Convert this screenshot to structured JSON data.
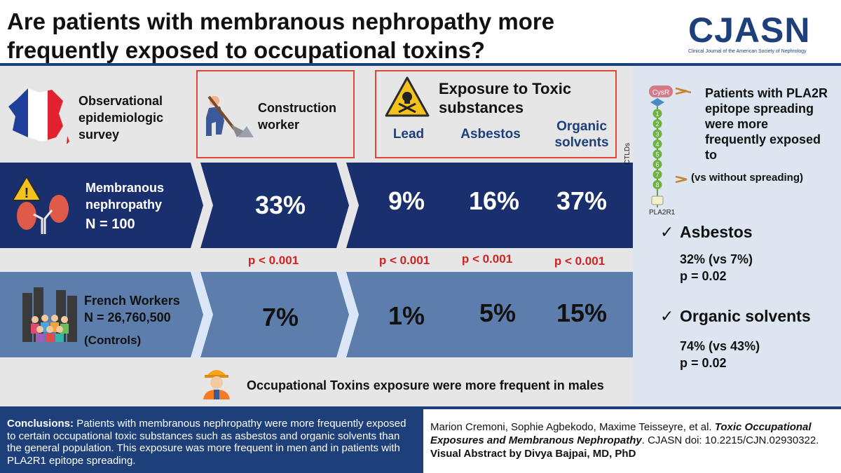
{
  "header": {
    "title": "Are patients with membranous nephropathy more frequently exposed to occupational toxins?",
    "logo": "CJASN",
    "logo_subtitle": "Clinical Journal of the American Society of Nephrology"
  },
  "columns": {
    "survey": "Observational epidemiologic survey",
    "construction": "Construction worker",
    "toxic_title": "Exposure to Toxic substances",
    "lead": "Lead",
    "asbestos": "Asbestos",
    "organic": "Organic solvents"
  },
  "rows": {
    "mn": {
      "label": "Membranous nephropathy",
      "n": "N = 100",
      "construction": "33%",
      "lead": "9%",
      "asbestos": "16%",
      "organic": "37%"
    },
    "pvalues": {
      "construction": "p < 0.001",
      "lead": "p < 0.001",
      "asbestos": "p < 0.001",
      "organic": "p < 0.001"
    },
    "fw": {
      "label": "French Workers",
      "n": "N = 26,760,500",
      "controls": "(Controls)",
      "construction": "7%",
      "lead": "1%",
      "asbestos": "5%",
      "organic": "15%"
    }
  },
  "males_note": "Occupational Toxins exposure were more frequent in males",
  "side": {
    "intro": "Patients with PLA2R epitope spreading were more frequently exposed to",
    "vs_without": "(vs without spreading)",
    "cysr": "CysR",
    "ctlds": "CTLDs",
    "pla2r1": "PLA2R1",
    "domains": [
      "1",
      "2",
      "3",
      "4",
      "5",
      "6",
      "7",
      "8"
    ],
    "item1_title": "Asbestos",
    "item1_value": "32% (vs 7%)",
    "item1_p": "p = 0.02",
    "item2_title": "Organic solvents",
    "item2_value": "74% (vs 43%)",
    "item2_p": "p = 0.02",
    "check": "✓"
  },
  "conclusion": {
    "label": "Conclusions:",
    "text": "Patients with membranous nephropathy were more frequently exposed to certain occupational toxic substances such as asbestos and organic solvents than the general population. This exposure was more frequent in men and in patients with PLA2R1 epitope spreading."
  },
  "citation": {
    "authors": "Marion Cremoni, Sophie Agbekodo, Maxime Teisseyre, et al.",
    "title": "Toxic Occupational Exposures and Membranous Nephropathy",
    "journal": ". CJASN doi: 10.2215/CJN.02930322.",
    "credit": "Visual Abstract by Divya Bajpai, MD, PhD"
  },
  "colors": {
    "navy": "#1a2f6e",
    "steel": "#5d7eac",
    "red": "#e0492f",
    "pvalue_red": "#d22222"
  }
}
